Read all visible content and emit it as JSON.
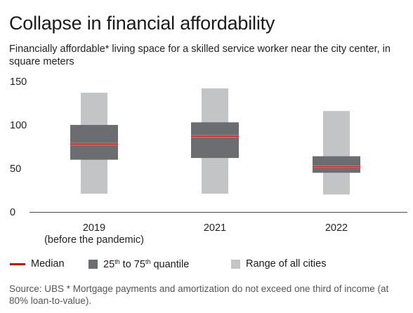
{
  "title": "Collapse in financial affordability",
  "subtitle": "Financially affordable* living space for a skilled service worker near the city center, in square meters",
  "legend": {
    "median": "Median",
    "iqr_prefix": "25",
    "iqr_sup1": "th",
    "iqr_mid": " to 75",
    "iqr_sup2": "th",
    "iqr_suffix": " quantile",
    "range": "Range of all cities"
  },
  "source": "Source: UBS  * Mortgage payments and amortization do not exceed one third of income (at 80% loan-to-value).",
  "colors": {
    "median": "#e60000",
    "iqr": "#6b6d70",
    "range": "#c3c4c6",
    "axis": "#4d4d4d"
  },
  "chart_data": {
    "type": "box",
    "categories": [
      "2019",
      "2021",
      "2022"
    ],
    "category_sublabels": [
      "(before the pandemic)",
      "",
      ""
    ],
    "yticks": [
      0,
      50,
      100,
      150
    ],
    "ylim": [
      0,
      150
    ],
    "series": [
      {
        "category": "2019",
        "min": 21,
        "q1": 60,
        "median": 78,
        "q3": 100,
        "max": 137
      },
      {
        "category": "2021",
        "min": 21,
        "q1": 62,
        "median": 87,
        "q3": 103,
        "max": 142
      },
      {
        "category": "2022",
        "min": 20,
        "q1": 45,
        "median": 52,
        "q3": 64,
        "max": 116
      }
    ],
    "grid": false,
    "legend_position": "bottom"
  }
}
